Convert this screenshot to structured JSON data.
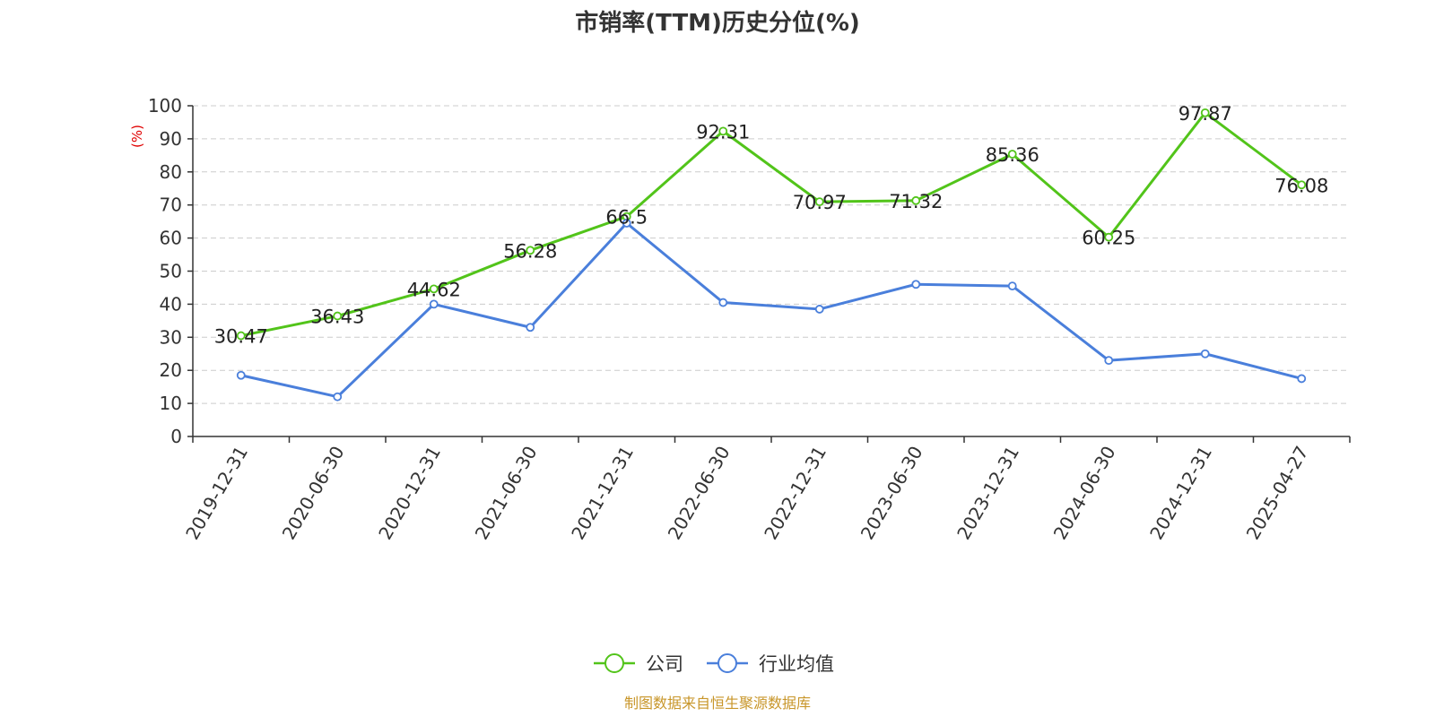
{
  "colors": {
    "company": "#52c41a",
    "industry": "#4a7fdb",
    "axis": "#333333",
    "grid": "#cccccc",
    "ylabel": "#e00000",
    "source": "#c8962a"
  },
  "source_text": "制图数据来自恒生聚源数据库",
  "chart_data": {
    "type": "line",
    "title": "市销率(TTM)历史分位(%)",
    "ylabel": "(%)",
    "xlabel": "",
    "ylim": [
      0,
      100
    ],
    "yticks": [
      0,
      10,
      20,
      30,
      40,
      50,
      60,
      70,
      80,
      90,
      100
    ],
    "grid": true,
    "legend_position": "bottom-center",
    "categories": [
      "2019-12-31",
      "2020-06-30",
      "2020-12-31",
      "2021-06-30",
      "2021-12-31",
      "2022-06-30",
      "2022-12-31",
      "2023-06-30",
      "2023-12-31",
      "2024-06-30",
      "2024-12-31",
      "2025-04-27"
    ],
    "series": [
      {
        "name": "公司",
        "color": "#52c41a",
        "show_labels": true,
        "values": [
          30.47,
          36.43,
          44.62,
          56.28,
          66.5,
          92.31,
          70.97,
          71.32,
          85.36,
          60.25,
          97.87,
          76.08
        ]
      },
      {
        "name": "行业均值",
        "color": "#4a7fdb",
        "show_labels": false,
        "values": [
          18.5,
          12.0,
          40.0,
          33.0,
          64.5,
          40.5,
          38.5,
          46.0,
          45.5,
          23.0,
          25.0,
          17.5
        ]
      }
    ]
  }
}
